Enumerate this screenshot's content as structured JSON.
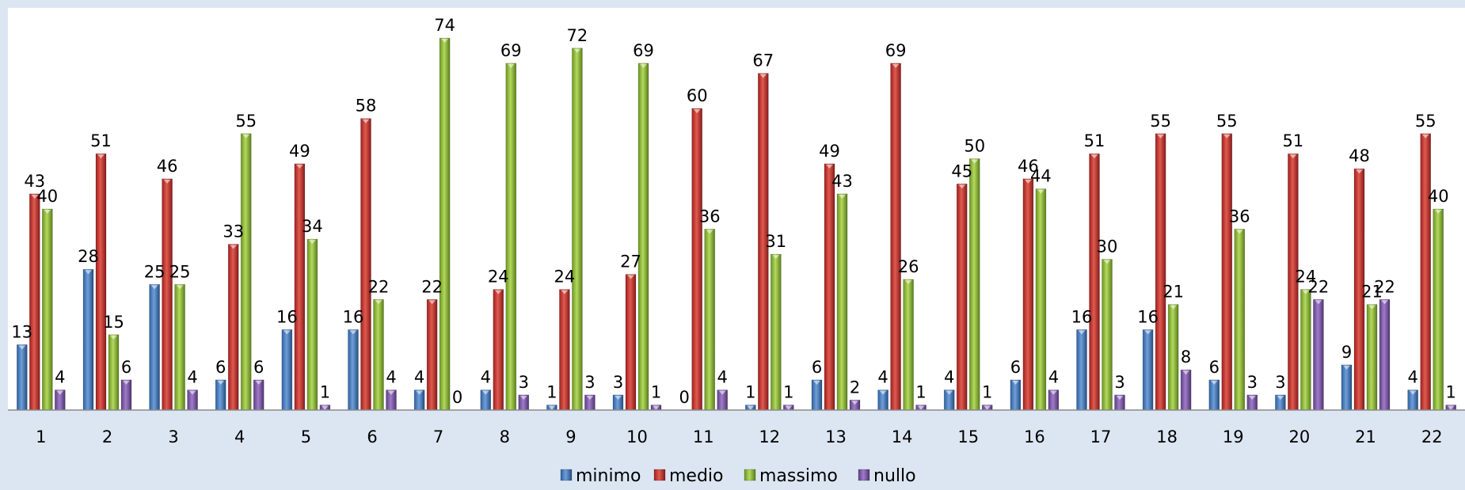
{
  "chart_data": {
    "type": "bar",
    "categories": [
      "1",
      "2",
      "3",
      "4",
      "5",
      "6",
      "7",
      "8",
      "9",
      "10",
      "11",
      "12",
      "13",
      "14",
      "15",
      "16",
      "17",
      "18",
      "19",
      "20",
      "21",
      "22"
    ],
    "series": [
      {
        "name": "minimo",
        "color": "#4a7ebb",
        "values": [
          13,
          28,
          25,
          6,
          16,
          16,
          4,
          4,
          1,
          3,
          0,
          1,
          6,
          4,
          4,
          6,
          16,
          16,
          6,
          3,
          9,
          4
        ]
      },
      {
        "name": "medio",
        "color": "#c0392b",
        "values": [
          43,
          51,
          46,
          33,
          49,
          58,
          22,
          24,
          24,
          27,
          60,
          67,
          49,
          69,
          45,
          46,
          51,
          55,
          55,
          51,
          48,
          55
        ]
      },
      {
        "name": "massimo",
        "color": "#8dbb33",
        "values": [
          40,
          15,
          25,
          55,
          34,
          22,
          74,
          69,
          72,
          69,
          36,
          31,
          43,
          26,
          50,
          44,
          30,
          21,
          36,
          24,
          21,
          40
        ]
      },
      {
        "name": "nullo",
        "color": "#7e57a8",
        "values": [
          4,
          6,
          4,
          6,
          1,
          4,
          0,
          3,
          3,
          1,
          4,
          1,
          2,
          1,
          1,
          4,
          3,
          8,
          3,
          22,
          22,
          1
        ]
      }
    ],
    "ylim": [
      0,
      80
    ],
    "grid": false,
    "legend": "bottom"
  }
}
